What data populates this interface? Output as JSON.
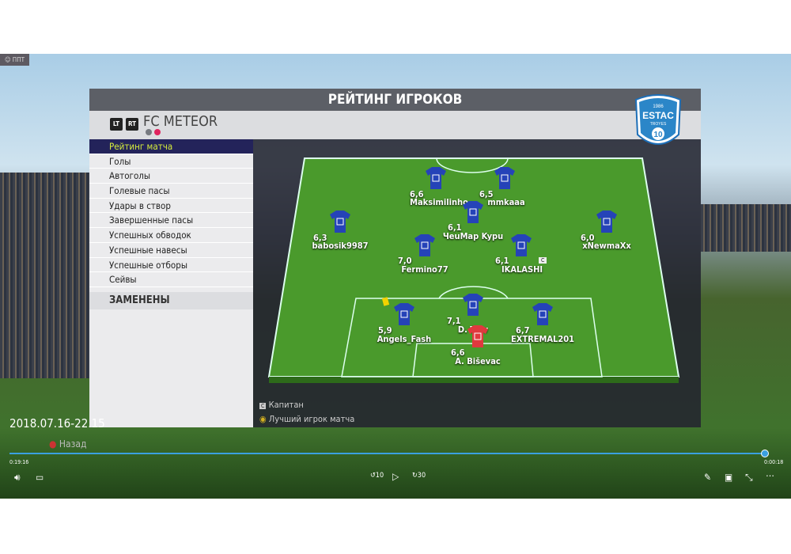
{
  "window": {
    "title_icon": "user-mic-icon",
    "title": "ППТ"
  },
  "panel": {
    "title": "РЕЙТИНГ ИГРОКОВ",
    "lt_button": "LT",
    "rt_button": "RT",
    "team_name": "FC METEOR",
    "team_colors": [
      "#777a80",
      "#e0245e"
    ],
    "crest": {
      "year": "1986",
      "name": "ESTAC",
      "city": "TROYES",
      "number": "10"
    }
  },
  "menu": {
    "items": [
      "Рейтинг матча",
      "Голы",
      "Автоголы",
      "Голевые пасы",
      "Удары в створ",
      "Завершенные пасы",
      "Успешных обводок",
      "Успешные навесы",
      "Успешные отборы",
      "Сейвы"
    ],
    "selected": 0,
    "substituted": "ЗАМЕНЕНЫ"
  },
  "players": [
    {
      "name": "Maksimilinho",
      "rating": "6,6",
      "kit": "blue"
    },
    {
      "name": "mmkaaa",
      "rating": "6,5",
      "kit": "blue"
    },
    {
      "name": "babosik9987",
      "rating": "6,3",
      "kit": "blue"
    },
    {
      "name": "ЧеuMap Kypu",
      "rating": "6,1",
      "kit": "blue"
    },
    {
      "name": "xNewmaXx",
      "rating": "6,0",
      "kit": "blue"
    },
    {
      "name": "Fermino77",
      "rating": "7,0",
      "kit": "blue"
    },
    {
      "name": "IKALASHI",
      "rating": "6,1",
      "kit": "blue",
      "captain": true
    },
    {
      "name": "Angels_Fash",
      "rating": "5,9",
      "kit": "blue",
      "yellow_card": true
    },
    {
      "name": "D. T...v",
      "rating": "7,1",
      "kit": "blue"
    },
    {
      "name": "EXTREMAL201",
      "rating": "6,7",
      "kit": "blue"
    },
    {
      "name": "A. Biševac",
      "rating": "6,6",
      "kit": "red"
    }
  ],
  "legend": {
    "captain": "Капитан",
    "motm": "Лучший игрок матча",
    "captain_badge": "C"
  },
  "overlay": {
    "timestamp": "2018.07.16-22.15",
    "back": "Назад"
  },
  "media": {
    "elapsed": "0:19:16",
    "remaining": "0:00:18",
    "progress": 0.985,
    "accent": "#3aa0e0",
    "skip_back": "10",
    "skip_fwd": "30"
  }
}
